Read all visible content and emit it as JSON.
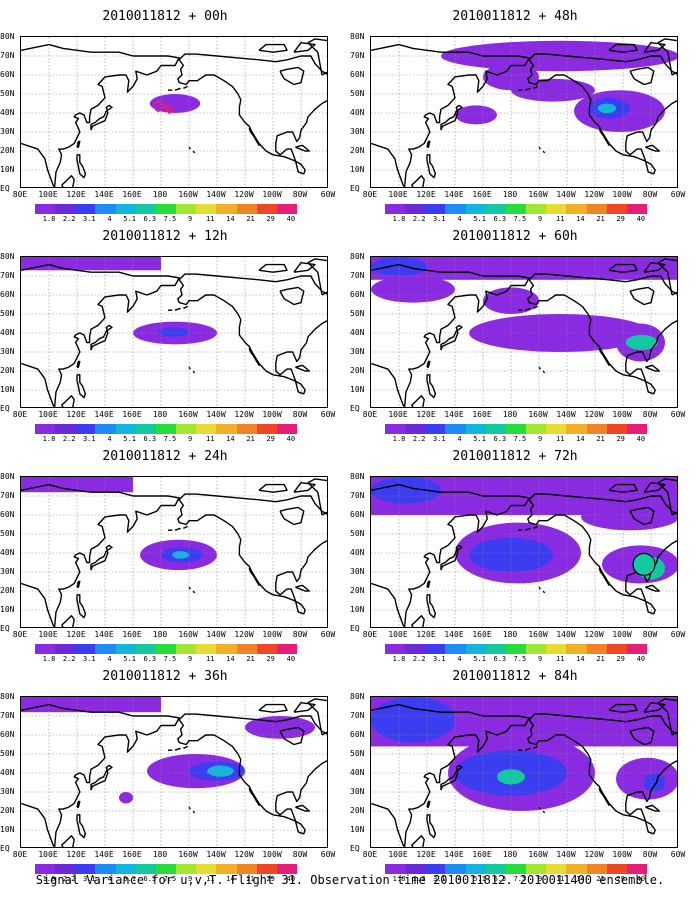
{
  "panels": [
    {
      "title": "2010011812 + 00h"
    },
    {
      "title": "2010011812 + 48h"
    },
    {
      "title": "2010011812 + 12h"
    },
    {
      "title": "2010011812 + 60h"
    },
    {
      "title": "2010011812 + 24h"
    },
    {
      "title": "2010011812 + 72h"
    },
    {
      "title": "2010011812 + 36h"
    },
    {
      "title": "2010011812 + 84h"
    }
  ],
  "lat_labels": [
    "80N",
    "70N",
    "60N",
    "50N",
    "40N",
    "30N",
    "20N",
    "10N",
    "EQ"
  ],
  "lon_labels": [
    "80E",
    "100E",
    "120E",
    "140E",
    "160E",
    "180",
    "160W",
    "140W",
    "120W",
    "100W",
    "80W",
    "60W"
  ],
  "colorbar_labels": [
    "1.8",
    "2.2",
    "3.1",
    "4",
    "5.1",
    "6.3",
    "7.5",
    "9",
    "11",
    "14",
    "21",
    "29",
    "40"
  ],
  "colorbar_colors": [
    "#8a2be2",
    "#6a2ad8",
    "#3c3cf0",
    "#1e8cf5",
    "#14b4dc",
    "#14c8a0",
    "#28dc3c",
    "#a0e632",
    "#e6dc32",
    "#f0af28",
    "#f08228",
    "#f04628",
    "#e61e78"
  ],
  "footer": "Signal Variance for u,v,T. Flight 31. Observation time 2010011812. 2010011400 ensemble."
}
